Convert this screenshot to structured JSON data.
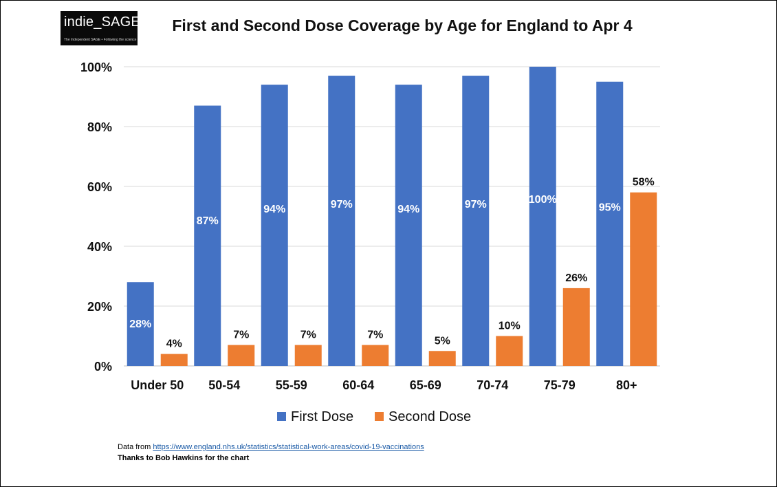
{
  "logo": {
    "text": "indie_SAGE",
    "subtext": "The Independent SAGE • Following the science"
  },
  "chart_data": {
    "type": "bar",
    "title": "First and Second Dose Coverage by Age for England to Apr 4",
    "xlabel": "",
    "ylabel": "",
    "categories": [
      "Under 50",
      "50-54",
      "55-59",
      "60-64",
      "65-69",
      "70-74",
      "75-79",
      "80+"
    ],
    "series": [
      {
        "name": "First Dose",
        "color": "#4472C4",
        "values": [
          28,
          87,
          94,
          97,
          94,
          97,
          100,
          95
        ],
        "labels": [
          "28%",
          "87%",
          "94%",
          "97%",
          "94%",
          "97%",
          "100%",
          "95%"
        ]
      },
      {
        "name": "Second Dose",
        "color": "#ED7D31",
        "values": [
          4,
          7,
          7,
          7,
          5,
          10,
          26,
          58
        ],
        "labels": [
          "4%",
          "7%",
          "7%",
          "7%",
          "5%",
          "10%",
          "26%",
          "58%"
        ]
      }
    ],
    "ylim": [
      0,
      100
    ],
    "yticks": [
      0,
      20,
      40,
      60,
      80,
      100
    ],
    "ytick_labels": [
      "0%",
      "20%",
      "40%",
      "60%",
      "80%",
      "100%"
    ],
    "grid": true,
    "legend_position": "bottom"
  },
  "footer": {
    "source_prefix": "Data from ",
    "source_url": "https://www.england.nhs.uk/statistics/statistical-work-areas/covid-19-vaccinations",
    "credit": "Thanks to Bob Hawkins for the chart"
  }
}
